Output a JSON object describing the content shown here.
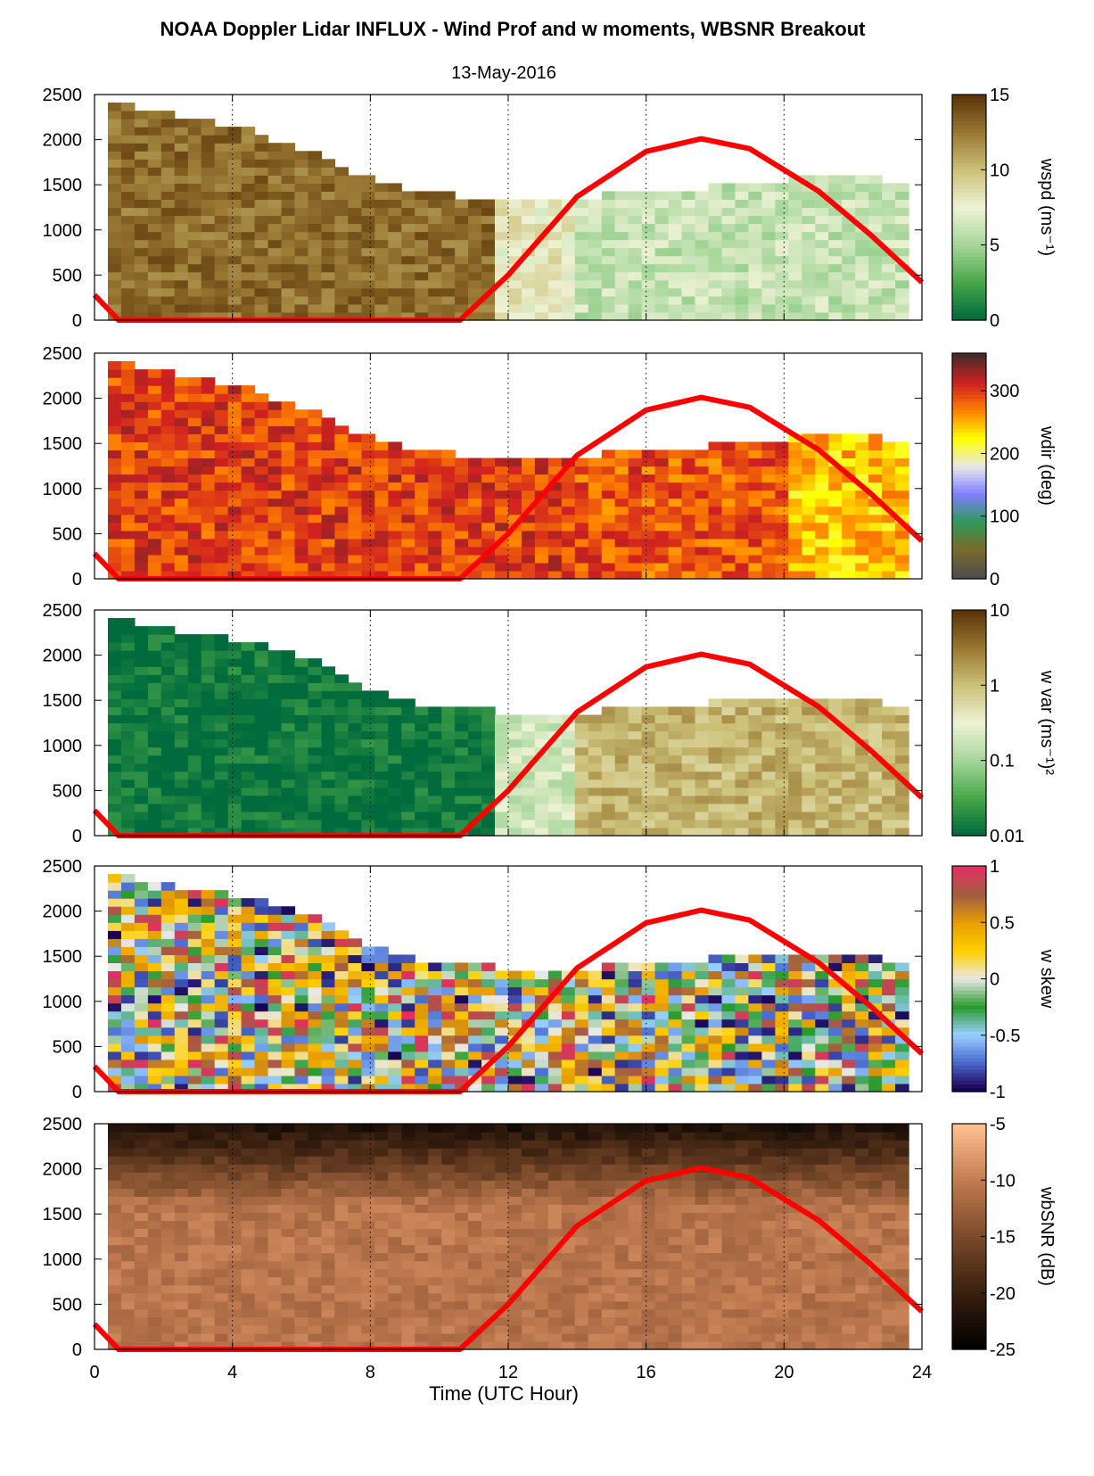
{
  "title": "NOAA Doppler Lidar INFLUX - Wind Prof and w moments, WBSNR Breakout",
  "subtitle": "13-May-2016",
  "chart_data": {
    "type": "heatmap",
    "xlabel": "Time (UTC Hour)",
    "xlim": [
      0,
      24
    ],
    "xticks": [
      "0",
      "4",
      "8",
      "12",
      "16",
      "20",
      "24"
    ],
    "ylim": [
      0,
      2500
    ],
    "yticks": [
      "0",
      "500",
      "1000",
      "1500",
      "2000",
      "2500"
    ],
    "grid": "dotted vertical lines at 4-hour intervals",
    "overlay_line": {
      "color": "#ff0000",
      "points": [
        [
          0,
          280
        ],
        [
          0.7,
          0
        ],
        [
          10.6,
          0
        ],
        [
          12,
          500
        ],
        [
          14,
          1370
        ],
        [
          16,
          1870
        ],
        [
          17.6,
          2010
        ],
        [
          19,
          1900
        ],
        [
          21,
          1430
        ],
        [
          22.5,
          950
        ],
        [
          24,
          420
        ]
      ]
    },
    "panels": [
      {
        "colorbar_label": "wspd (ms⁻¹)",
        "colorbar_ticks": [
          "0",
          "5",
          "10",
          "15"
        ],
        "clim": [
          0,
          15
        ],
        "colormap": [
          "#006b3c",
          "#4aa84a",
          "#a6d69a",
          "#eef2d5",
          "#cdc27a",
          "#9a7a35",
          "#5c3608"
        ],
        "top_profile": [
          [
            0.2,
            2500
          ],
          [
            1.5,
            2300
          ],
          [
            3,
            2250
          ],
          [
            4.5,
            2100
          ],
          [
            6,
            1900
          ],
          [
            7.5,
            1650
          ],
          [
            9,
            1450
          ],
          [
            10.5,
            1380
          ],
          [
            12,
            1380
          ],
          [
            13.5,
            1350
          ],
          [
            15,
            1400
          ],
          [
            17,
            1450
          ],
          [
            19,
            1500
          ],
          [
            21,
            1600
          ],
          [
            22.5,
            1580
          ],
          [
            23.8,
            1450
          ]
        ],
        "regimes": [
          {
            "x": [
              0,
              11.5
            ],
            "value": 13
          },
          {
            "x": [
              11.5,
              14
            ],
            "value": 8
          },
          {
            "x": [
              14,
              24
            ],
            "value": 6
          }
        ]
      },
      {
        "colorbar_label": "wdir (deg)",
        "colorbar_ticks": [
          "0",
          "100",
          "200",
          "300"
        ],
        "clim": [
          0,
          360
        ],
        "colormap": [
          "#4d4d4d",
          "#7a6a2a",
          "#2e9a5a",
          "#8080ff",
          "#e8e8e8",
          "#ffff00",
          "#ff8000",
          "#d02020",
          "#4a2a2a"
        ],
        "top_profile": [
          [
            0.2,
            2500
          ],
          [
            1.5,
            2300
          ],
          [
            3,
            2250
          ],
          [
            4.5,
            2100
          ],
          [
            6,
            1900
          ],
          [
            7.5,
            1650
          ],
          [
            9,
            1450
          ],
          [
            10.5,
            1380
          ],
          [
            12,
            1380
          ],
          [
            13.5,
            1350
          ],
          [
            15,
            1400
          ],
          [
            17,
            1450
          ],
          [
            19,
            1500
          ],
          [
            21,
            1600
          ],
          [
            22.5,
            1580
          ],
          [
            23.8,
            1450
          ]
        ],
        "regimes": [
          {
            "x": [
              0,
              14
            ],
            "value": 300
          },
          {
            "x": [
              14,
              20
            ],
            "value": 290
          },
          {
            "x": [
              20,
              24
            ],
            "value": 245
          }
        ]
      },
      {
        "colorbar_label": "w var (ms⁻¹)²",
        "colorbar_ticks": [
          "0.01",
          "0.1",
          "1",
          "10"
        ],
        "clim": [
          0.01,
          10
        ],
        "scale": "log",
        "colormap": [
          "#006b3c",
          "#4aa84a",
          "#a6d69a",
          "#eef2d5",
          "#cdc27a",
          "#9a7a35",
          "#5c3608"
        ],
        "top_profile": [
          [
            0.2,
            2500
          ],
          [
            1.5,
            2300
          ],
          [
            3,
            2250
          ],
          [
            4.5,
            2150
          ],
          [
            6,
            2000
          ],
          [
            7.5,
            1700
          ],
          [
            9,
            1500
          ],
          [
            10.5,
            1400
          ],
          [
            12,
            1380
          ],
          [
            13.5,
            1350
          ],
          [
            15,
            1400
          ],
          [
            17,
            1450
          ],
          [
            19,
            1500
          ],
          [
            21,
            1550
          ],
          [
            22.5,
            1500
          ],
          [
            23.8,
            1350
          ]
        ],
        "regimes": [
          {
            "x": [
              0,
              11.5
            ],
            "value": 0.012
          },
          {
            "x": [
              11.5,
              14
            ],
            "value": 0.2
          },
          {
            "x": [
              14,
              24
            ],
            "value": 1.2
          }
        ]
      },
      {
        "colorbar_label": "w skew",
        "colorbar_ticks": [
          "-1",
          "-0.5",
          "0",
          "0.5",
          "1"
        ],
        "clim": [
          -1,
          1
        ],
        "colormap": [
          "#1a0050",
          "#4a6ad0",
          "#9ad0ff",
          "#2a9a2a",
          "#e8e8e8",
          "#ffd000",
          "#e8a000",
          "#a06040",
          "#e03060"
        ],
        "top_profile": [
          [
            0.2,
            2500
          ],
          [
            1.5,
            2300
          ],
          [
            3,
            2250
          ],
          [
            4.5,
            2150
          ],
          [
            6,
            2000
          ],
          [
            7.5,
            1700
          ],
          [
            9,
            1500
          ],
          [
            10.5,
            1400
          ],
          [
            12,
            1380
          ],
          [
            13.5,
            1350
          ],
          [
            15,
            1400
          ],
          [
            17,
            1450
          ],
          [
            19,
            1500
          ],
          [
            21,
            1550
          ],
          [
            22.5,
            1500
          ],
          [
            23.8,
            1350
          ]
        ],
        "regimes": [
          {
            "x": [
              0,
              24
            ],
            "value": 0
          }
        ]
      },
      {
        "colorbar_label": "wbSNR (dB)",
        "colorbar_ticks": [
          "-25",
          "-20",
          "-15",
          "-10",
          "-5"
        ],
        "clim": [
          -25,
          -5
        ],
        "colormap": [
          "#000000",
          "#3a2010",
          "#7a4a2a",
          "#c07a50",
          "#ffc090"
        ],
        "top_profile": [
          [
            0.2,
            2500
          ],
          [
            24,
            2500
          ]
        ],
        "regimes": [
          {
            "x": [
              0,
              24
            ],
            "value": -12
          }
        ]
      }
    ]
  }
}
